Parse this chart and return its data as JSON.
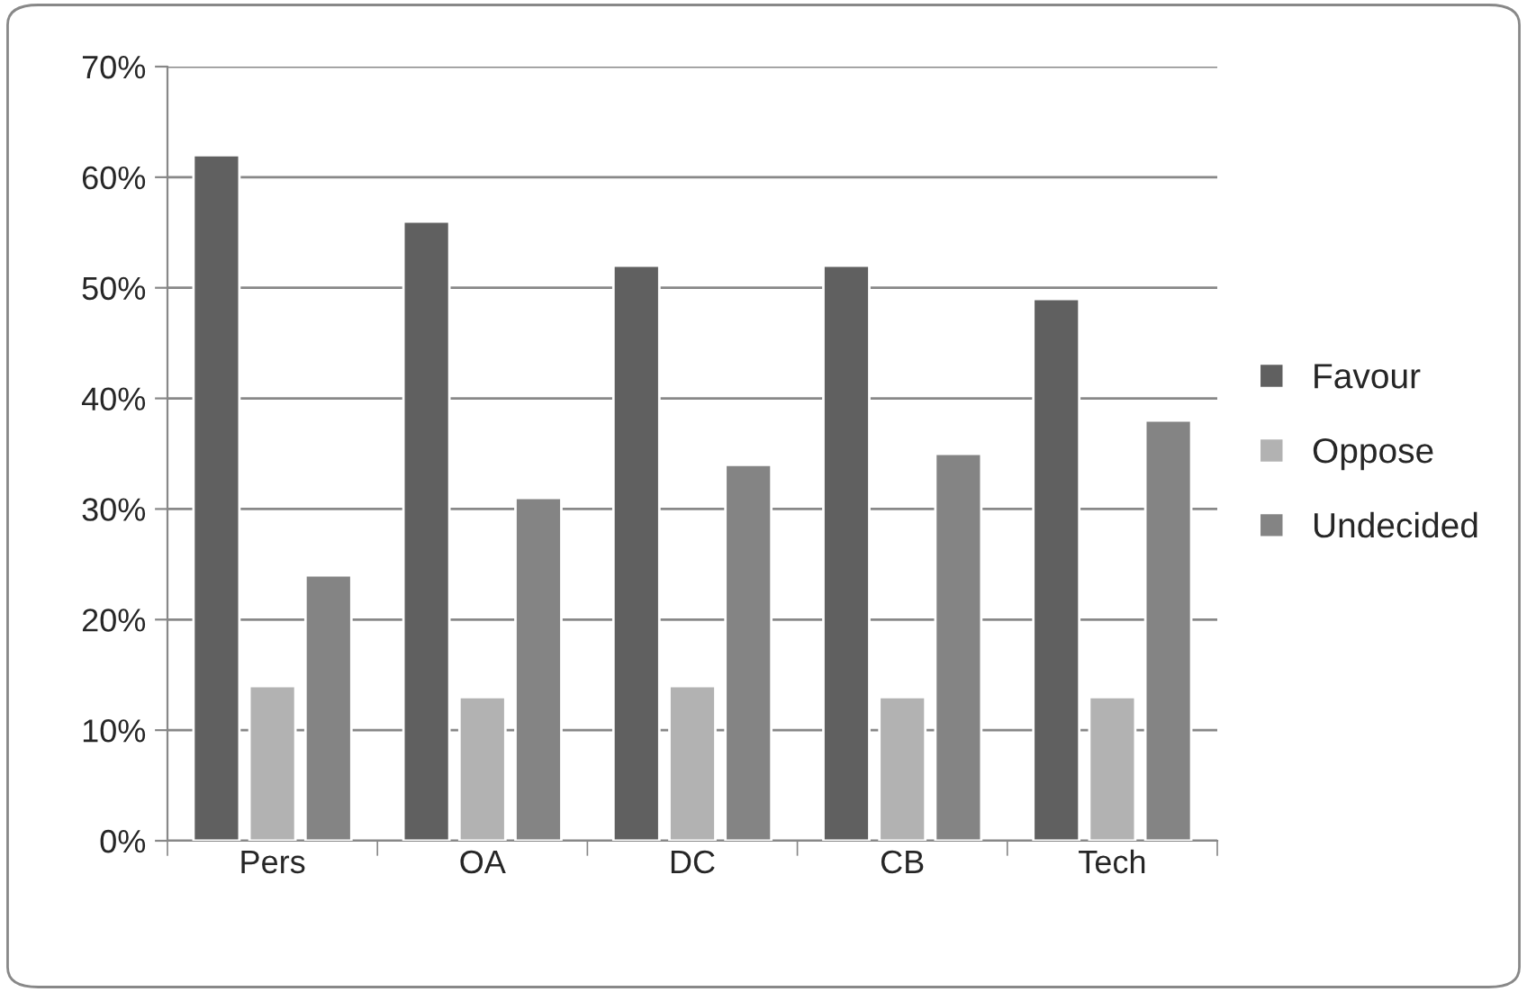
{
  "chart_data": {
    "type": "bar",
    "categories": [
      "Pers",
      "OA",
      "DC",
      "CB",
      "Tech"
    ],
    "series": [
      {
        "name": "Favour",
        "color": "#606060",
        "values": [
          62,
          56,
          52,
          52,
          49
        ]
      },
      {
        "name": "Oppose",
        "color": "#b2b2b2",
        "values": [
          14,
          13,
          14,
          13,
          13
        ]
      },
      {
        "name": "Undecided",
        "color": "#848484",
        "values": [
          24,
          31,
          34,
          35,
          38
        ]
      }
    ],
    "ylim": [
      0,
      70
    ],
    "yticks": [
      {
        "value": 0,
        "label": "0%"
      },
      {
        "value": 10,
        "label": "10%"
      },
      {
        "value": 20,
        "label": "20%"
      },
      {
        "value": 30,
        "label": "30%"
      },
      {
        "value": 40,
        "label": "40%"
      },
      {
        "value": 50,
        "label": "50%"
      },
      {
        "value": 60,
        "label": "60%"
      },
      {
        "value": 70,
        "label": "70%"
      }
    ],
    "grid": "y",
    "legend": "right"
  }
}
